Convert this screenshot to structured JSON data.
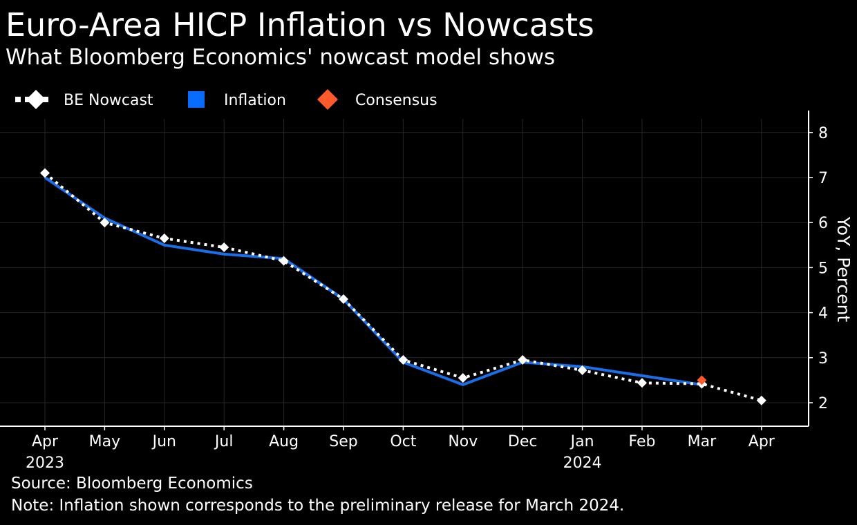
{
  "header": {
    "title": "Euro-Area HICP Inflation vs Nowcasts",
    "subtitle": "What Bloomberg Economics' nowcast model shows"
  },
  "footer": {
    "source": "Source: Bloomberg Economics",
    "note": "Note: Inflation shown corresponds to the preliminary release for March 2024."
  },
  "colors": {
    "background": "#000000",
    "text": "#ffffff",
    "grid": "#262626",
    "nowcast": "#ffffff",
    "inflation": "#1a6fe8",
    "inflation_legend": "#0a6cff",
    "consensus": "#ff5a2c"
  },
  "chart_data": {
    "type": "line",
    "title": "Euro-Area HICP Inflation vs Nowcasts",
    "subtitle": "What Bloomberg Economics' nowcast model shows",
    "xlabel": "",
    "ylabel": "YoY, Percent",
    "ylim": [
      1.5,
      8.5
    ],
    "yticks": [
      2,
      3,
      4,
      5,
      6,
      7,
      8
    ],
    "grid": true,
    "legend_position": "top-left",
    "categories": [
      "Apr",
      "May",
      "Jun",
      "Jul",
      "Aug",
      "Sep",
      "Oct",
      "Nov",
      "Dec",
      "Jan",
      "Feb",
      "Mar",
      "Apr"
    ],
    "year_labels": [
      "2023",
      "",
      "",
      "",
      "",
      "",
      "",
      "",
      "",
      "2024",
      "",
      "",
      ""
    ],
    "series": [
      {
        "name": "BE Nowcast",
        "style": "dotted-line-diamond",
        "values": [
          7.1,
          6.0,
          5.65,
          5.45,
          5.15,
          4.3,
          2.95,
          2.55,
          2.95,
          2.72,
          2.44,
          2.42,
          2.05
        ]
      },
      {
        "name": "Inflation",
        "style": "line",
        "values": [
          7.0,
          6.1,
          5.5,
          5.3,
          5.2,
          4.3,
          2.9,
          2.4,
          2.9,
          2.8,
          2.6,
          2.4,
          null
        ]
      },
      {
        "name": "Consensus",
        "style": "diamond-marker",
        "values": [
          null,
          null,
          null,
          null,
          null,
          null,
          null,
          null,
          null,
          null,
          null,
          2.5,
          null
        ]
      }
    ]
  }
}
